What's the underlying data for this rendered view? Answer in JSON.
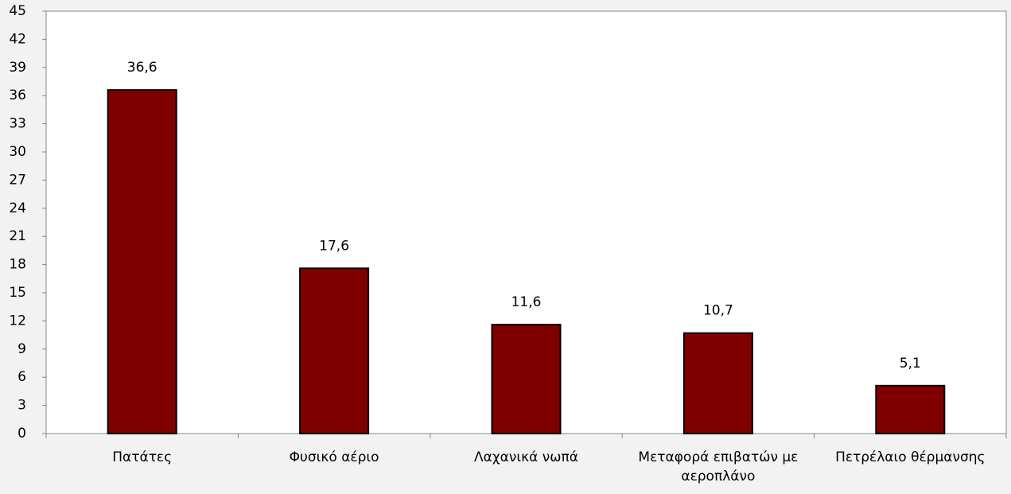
{
  "chart_data": {
    "type": "bar",
    "categories": [
      "Πατάτες",
      "Φυσικό αέριο",
      "Λαχανικά νωπά",
      "Μεταφορά επιβατών με αεροπλάνο",
      "Πετρέλαιο θέρμανσης"
    ],
    "values": [
      36.6,
      17.6,
      11.6,
      10.7,
      5.1
    ],
    "value_labels": [
      "36,6",
      "17,6",
      "11,6",
      "10,7",
      "5,1"
    ],
    "color": "#800000",
    "ylim": [
      0,
      45
    ],
    "yticks": [
      0,
      3,
      6,
      9,
      12,
      15,
      18,
      21,
      24,
      27,
      30,
      33,
      36,
      39,
      42,
      45
    ]
  }
}
